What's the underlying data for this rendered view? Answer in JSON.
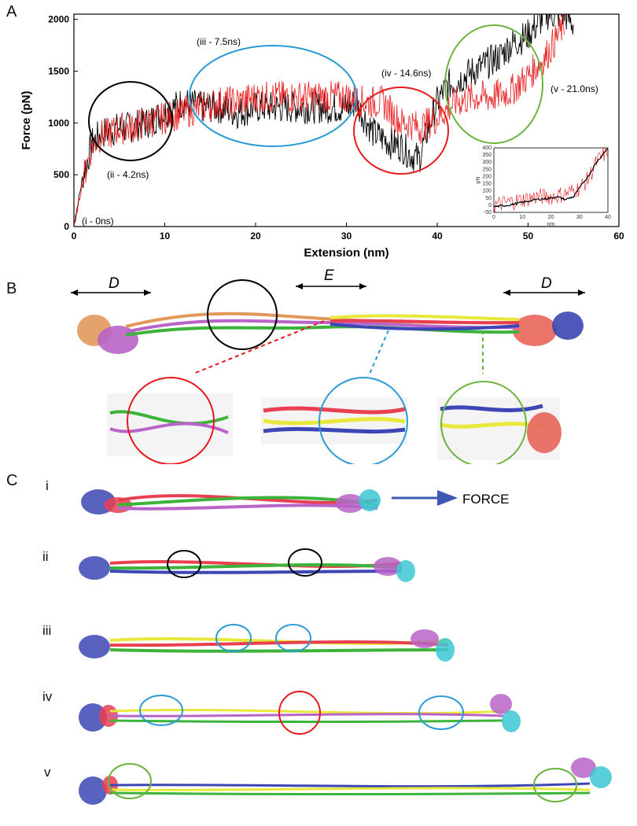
{
  "panels": {
    "a": "A",
    "b": "B",
    "c": "C"
  },
  "chart_data": {
    "type": "line",
    "xlabel": "Extension (nm)",
    "ylabel": "Force (pN)",
    "xlim": [
      0,
      60
    ],
    "ylim": [
      0,
      2050
    ],
    "x_ticks": [
      "0",
      "10",
      "20",
      "30",
      "40",
      "50",
      "60"
    ],
    "y_ticks": [
      "0",
      "500",
      "1000",
      "1500",
      "2000"
    ],
    "series": [
      {
        "color": "#000000",
        "x": [
          0,
          1,
          2,
          3,
          4,
          5,
          6,
          7,
          8,
          9,
          10,
          11,
          12,
          14,
          16,
          18,
          20,
          22,
          24,
          26,
          28,
          30,
          31,
          32,
          33,
          34,
          35,
          36,
          37,
          38,
          39,
          40,
          41,
          42,
          43,
          44,
          45,
          46,
          47,
          48,
          49,
          50,
          51,
          52,
          53,
          54,
          55
        ],
        "values": [
          0,
          500,
          800,
          900,
          920,
          950,
          950,
          980,
          1000,
          1050,
          1100,
          1150,
          1200,
          1150,
          1150,
          1100,
          1150,
          1150,
          1150,
          1150,
          1150,
          1150,
          1200,
          1050,
          900,
          850,
          800,
          780,
          700,
          650,
          950,
          1200,
          1350,
          1400,
          1450,
          1500,
          1550,
          1600,
          1650,
          1750,
          1800,
          1850,
          1950,
          2050,
          2050,
          2050,
          1950
        ]
      },
      {
        "color": "#e8191c",
        "x": [
          0,
          1,
          2,
          3,
          4,
          5,
          6,
          7,
          8,
          10,
          12,
          14,
          16,
          18,
          20,
          22,
          24,
          26,
          28,
          30,
          32,
          34,
          35,
          36,
          37,
          38,
          40,
          42,
          44,
          46,
          48,
          50,
          52,
          54
        ],
        "values": [
          0,
          450,
          780,
          880,
          900,
          950,
          950,
          980,
          1000,
          1050,
          1100,
          1150,
          1200,
          1200,
          1250,
          1250,
          1250,
          1250,
          1250,
          1250,
          1200,
          1200,
          1100,
          1000,
          1000,
          950,
          1050,
          1200,
          1250,
          1250,
          1300,
          1450,
          1650,
          1950
        ]
      }
    ],
    "annotations": [
      {
        "label": "(i - 0ns)"
      },
      {
        "label": "(ii - 4.2ns)"
      },
      {
        "label": "(iii - 7.5ns)"
      },
      {
        "label": "(iv - 14.6ns)"
      },
      {
        "label": "(v - 21.0ns)"
      }
    ],
    "inset": {
      "xlabel": "nm",
      "ylabel": "pN",
      "xlim": [
        0,
        40
      ],
      "ylim": [
        -50,
        400
      ],
      "x_ticks": [
        "0",
        "10",
        "20",
        "30",
        "40"
      ],
      "y_ticks": [
        "-50",
        "0",
        "50",
        "100",
        "150",
        "200",
        "250",
        "300",
        "350",
        "400"
      ],
      "series": [
        {
          "color": "#000000",
          "x": [
            0,
            5,
            10,
            15,
            20,
            22,
            25,
            28,
            30,
            33,
            36,
            40
          ],
          "values": [
            -10,
            0,
            20,
            40,
            50,
            60,
            40,
            60,
            120,
            200,
            300,
            400
          ]
        },
        {
          "color": "#e8191c",
          "x": [
            0,
            5,
            10,
            15,
            20,
            25,
            30,
            33,
            36,
            40
          ],
          "values": [
            0,
            20,
            40,
            60,
            60,
            80,
            120,
            180,
            300,
            380
          ]
        }
      ]
    }
  },
  "panel_b": {
    "label_d_left": "D",
    "label_e": "E",
    "label_d_right": "D"
  },
  "panel_c": {
    "force_label": "FORCE",
    "rows": [
      {
        "label": "i"
      },
      {
        "label": "ii"
      },
      {
        "label": "iii"
      },
      {
        "label": "iv"
      },
      {
        "label": "v"
      }
    ]
  }
}
